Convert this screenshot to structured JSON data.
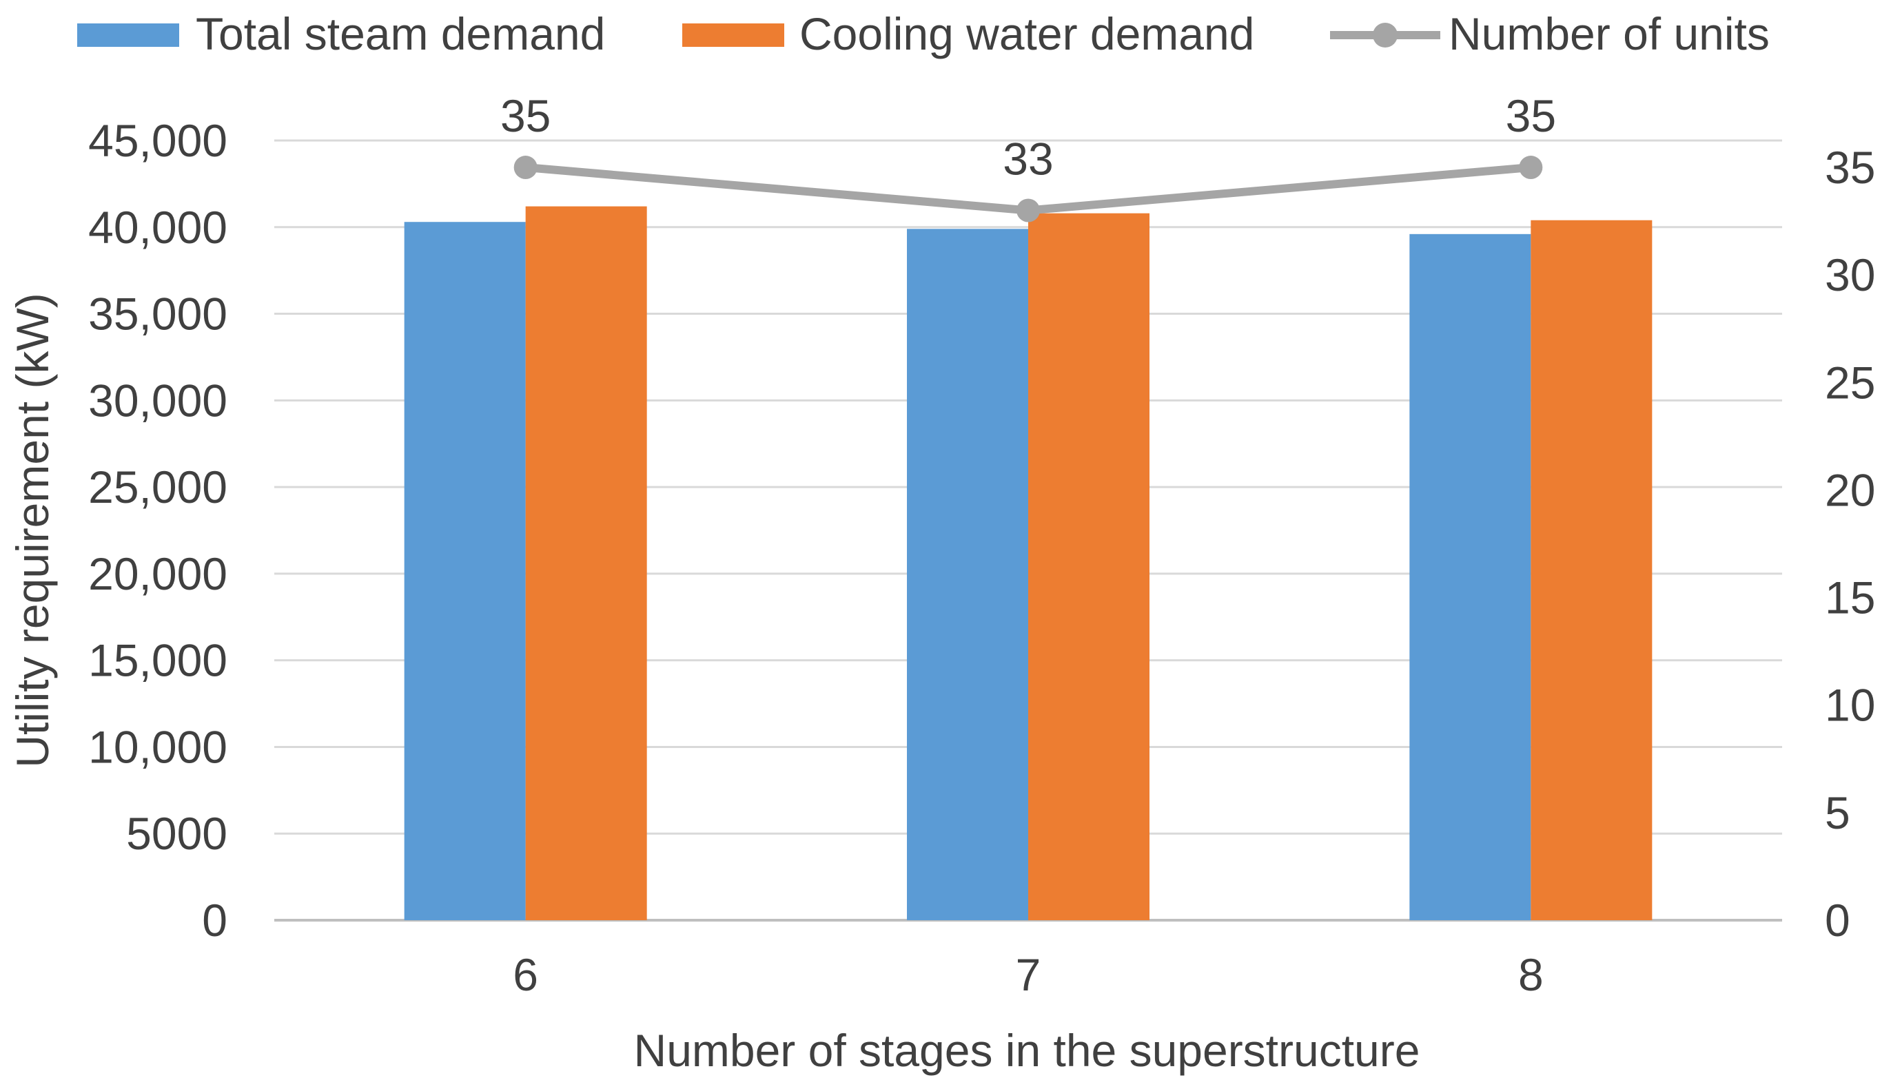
{
  "chart_data": {
    "type": "bar",
    "title": "",
    "xlabel": "Number of stages in the superstructure",
    "ylabel": "Utility requirement (kW)",
    "categories": [
      "6",
      "7",
      "8"
    ],
    "ylim": [
      0,
      45000
    ],
    "y_ticks": [
      0,
      5000,
      10000,
      15000,
      20000,
      25000,
      30000,
      35000,
      40000,
      45000
    ],
    "y_tick_labels": [
      "0",
      "5000",
      "10,000",
      "15,000",
      "20,000",
      "25,000",
      "30,000",
      "35,000",
      "40,000",
      "45,000"
    ],
    "y2lim": [
      0,
      36.25
    ],
    "y2_ticks": [
      0,
      5,
      10,
      15,
      20,
      25,
      30,
      35
    ],
    "y2_tick_labels": [
      "0",
      "5",
      "10",
      "15",
      "20",
      "25",
      "30",
      "35"
    ],
    "grid": true,
    "legend_position": "top",
    "series": [
      {
        "name": "Total steam demand",
        "kind": "bar",
        "axis": "left",
        "color": "#5B9BD5",
        "values": [
          40300,
          39900,
          39600
        ]
      },
      {
        "name": "Cooling water demand",
        "kind": "bar",
        "axis": "left",
        "color": "#ED7D31",
        "values": [
          41200,
          40800,
          40400
        ]
      },
      {
        "name": "Number of units",
        "kind": "line",
        "axis": "right",
        "color": "#A5A5A5",
        "values": [
          35,
          33,
          35
        ],
        "data_labels": [
          "35",
          "33",
          "35"
        ]
      }
    ]
  }
}
